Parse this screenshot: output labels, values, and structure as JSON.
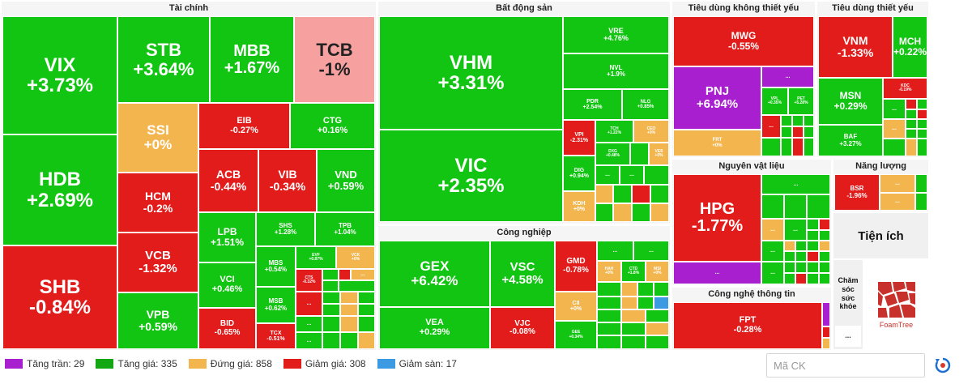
{
  "sectors": {
    "finance": "Tài chính",
    "real_estate": "Bất động sản",
    "discretionary": "Tiêu dùng không thiết yếu",
    "staples": "Tiêu dùng thiết yếu",
    "industrial": "Công nghiệp",
    "materials": "Nguyên vật liệu",
    "energy": "Năng lượng",
    "utilities": "Tiện ích",
    "tech": "Công nghệ thông tin",
    "healthcare": "Chăm sóc sức khỏe"
  },
  "tiles": {
    "VIX": {
      "s": "VIX",
      "c": "+3.73%"
    },
    "STB": {
      "s": "STB",
      "c": "+3.64%"
    },
    "MBB": {
      "s": "MBB",
      "c": "+1.67%"
    },
    "TCB": {
      "s": "TCB",
      "c": "-1%"
    },
    "HDB": {
      "s": "HDB",
      "c": "+2.69%"
    },
    "SSI": {
      "s": "SSI",
      "c": "+0%"
    },
    "EIB": {
      "s": "EIB",
      "c": "-0.27%"
    },
    "CTG": {
      "s": "CTG",
      "c": "+0.16%"
    },
    "HCM": {
      "s": "HCM",
      "c": "-0.2%"
    },
    "ACB": {
      "s": "ACB",
      "c": "-0.44%"
    },
    "VIB": {
      "s": "VIB",
      "c": "-0.34%"
    },
    "VND": {
      "s": "VND",
      "c": "+0.59%"
    },
    "SHB": {
      "s": "SHB",
      "c": "-0.84%"
    },
    "VCB": {
      "s": "VCB",
      "c": "-1.32%"
    },
    "LPB": {
      "s": "LPB",
      "c": "+1.51%"
    },
    "SHS": {
      "s": "SHS",
      "c": "+1.28%"
    },
    "TPB": {
      "s": "TPB",
      "c": "+1.04%"
    },
    "VCI": {
      "s": "VCI",
      "c": "+0.46%"
    },
    "MBS": {
      "s": "MBS",
      "c": "+0.54%"
    },
    "EVF": {
      "s": "EVF",
      "c": "+0.87%"
    },
    "VCK": {
      "s": "VCK",
      "c": "+0%"
    },
    "CTS": {
      "s": "CTS",
      "c": "-0.32%"
    },
    "VPB": {
      "s": "VPB",
      "c": "+0.59%"
    },
    "MSB": {
      "s": "MSB",
      "c": "+0.62%"
    },
    "BID": {
      "s": "BID",
      "c": "-0.65%"
    },
    "TCX": {
      "s": "TCX",
      "c": "-0.51%"
    },
    "VHM": {
      "s": "VHM",
      "c": "+3.31%"
    },
    "VRE": {
      "s": "VRE",
      "c": "+4.76%"
    },
    "NVL": {
      "s": "NVL",
      "c": "+1.9%"
    },
    "PDR": {
      "s": "PDR",
      "c": "+2.54%"
    },
    "NLG": {
      "s": "NLG",
      "c": "+0.85%"
    },
    "VPI": {
      "s": "VPI",
      "c": "-2.31%"
    },
    "TCH": {
      "s": "TCH",
      "c": "+1.22%"
    },
    "CEO": {
      "s": "CEO",
      "c": "+0%"
    },
    "DXG": {
      "s": "DXG",
      "c": "+0.48%"
    },
    "VES": {
      "s": "VES",
      "c": "+0%"
    },
    "VIC": {
      "s": "VIC",
      "c": "+2.35%"
    },
    "DIG": {
      "s": "DIG",
      "c": "+0.94%"
    },
    "KDH": {
      "s": "KDH",
      "c": "+0%"
    },
    "MWG": {
      "s": "MWG",
      "c": "-0.55%"
    },
    "PNJ": {
      "s": "PNJ",
      "c": "+6.94%"
    },
    "VPL": {
      "s": "VPL",
      "c": "+0.35%"
    },
    "PET": {
      "s": "PET",
      "c": "+5.28%"
    },
    "FRT": {
      "s": "FRT",
      "c": "+0%"
    },
    "VNM": {
      "s": "VNM",
      "c": "-1.33%"
    },
    "MCH": {
      "s": "MCH",
      "c": "+0.22%"
    },
    "MSN": {
      "s": "MSN",
      "c": "+0.29%"
    },
    "KDC": {
      "s": "KDC",
      "c": "-0.19%"
    },
    "BAF": {
      "s": "BAF",
      "c": "+3.27%"
    },
    "GEX": {
      "s": "GEX",
      "c": "+6.42%"
    },
    "VSC": {
      "s": "VSC",
      "c": "+4.58%"
    },
    "GMD": {
      "s": "GMD",
      "c": "-0.78%"
    },
    "HAH": {
      "s": "HAH",
      "c": "+0%"
    },
    "CTD": {
      "s": "CTD",
      "c": "+1.8%"
    },
    "MSI": {
      "s": "MSI",
      "c": "+0%"
    },
    "CII": {
      "s": "CII",
      "c": "+0%"
    },
    "VEA": {
      "s": "VEA",
      "c": "+0.29%"
    },
    "VJC": {
      "s": "VJC",
      "c": "-0.08%"
    },
    "GEE": {
      "s": "GEE",
      "c": "+0.34%"
    },
    "HPG": {
      "s": "HPG",
      "c": "-1.77%"
    },
    "BSR": {
      "s": "BSR",
      "c": "-1.96%"
    },
    "FPT": {
      "s": "FPT",
      "c": "-0.28%"
    }
  },
  "more": "...",
  "logo_text": "FoamTree",
  "legend": [
    {
      "label": "Tăng trần: 29",
      "color": "#a81fcf"
    },
    {
      "label": "Tăng giá: 335",
      "color": "#13a813"
    },
    {
      "label": "Đứng giá: 858",
      "color": "#f3b64f"
    },
    {
      "label": "Giảm giá: 308",
      "color": "#e21b1b"
    },
    {
      "label": "Giảm sàn: 17",
      "color": "#3b9ae1"
    }
  ],
  "search": {
    "placeholder": "Mã CK"
  }
}
